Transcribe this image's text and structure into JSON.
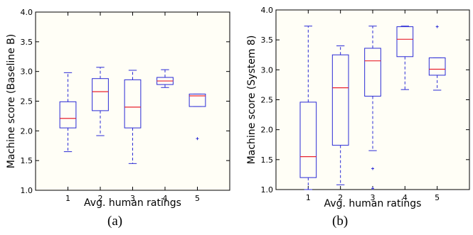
{
  "figure": {
    "captions": [
      "(a)",
      "(b)"
    ]
  },
  "colors": {
    "box": "#2a2ad6",
    "median": "#e8222f",
    "axis": "#000000",
    "background": "#fffef6"
  },
  "chart_data": [
    {
      "type": "box",
      "xlabel": "Avg. human ratings",
      "ylabel": "Machine score (Baseline B)",
      "xtick_labels": [
        "1",
        "2",
        "3",
        "4",
        "5"
      ],
      "ylim": [
        1.0,
        4.0
      ],
      "yticks": [
        "1.0",
        "1.5",
        "2.0",
        "2.5",
        "3.0",
        "3.5",
        "4.0"
      ],
      "grid": false,
      "boxes": [
        {
          "x": "1",
          "whisker_low": 1.65,
          "q1": 2.05,
          "median": 2.21,
          "q3": 2.49,
          "whisker_high": 2.98,
          "outliers": []
        },
        {
          "x": "2",
          "whisker_low": 1.92,
          "q1": 2.34,
          "median": 2.66,
          "q3": 2.88,
          "whisker_high": 3.07,
          "outliers": []
        },
        {
          "x": "3",
          "whisker_low": 1.45,
          "q1": 2.05,
          "median": 2.4,
          "q3": 2.86,
          "whisker_high": 3.02,
          "outliers": []
        },
        {
          "x": "4",
          "whisker_low": 2.73,
          "q1": 2.78,
          "median": 2.84,
          "q3": 2.9,
          "whisker_high": 3.03,
          "outliers": []
        },
        {
          "x": "5",
          "whisker_low": 2.41,
          "q1": 2.41,
          "median": 2.59,
          "q3": 2.62,
          "whisker_high": 2.62,
          "outliers": [
            1.87
          ]
        }
      ]
    },
    {
      "type": "box",
      "xlabel": "Avg. human ratings",
      "ylabel": "Machine score (System 8)",
      "xtick_labels": [
        "1",
        "2",
        "3",
        "4",
        "5"
      ],
      "ylim": [
        1.0,
        4.0
      ],
      "yticks": [
        "1.0",
        "1.5",
        "2.0",
        "2.5",
        "3.0",
        "3.5",
        "4.0"
      ],
      "grid": false,
      "boxes": [
        {
          "x": "1",
          "whisker_low": 1.0,
          "q1": 1.2,
          "median": 1.55,
          "q3": 2.46,
          "whisker_high": 3.73,
          "outliers": []
        },
        {
          "x": "2",
          "whisker_low": 1.08,
          "q1": 1.74,
          "median": 2.7,
          "q3": 3.25,
          "whisker_high": 3.4,
          "outliers": []
        },
        {
          "x": "3",
          "whisker_low": 1.65,
          "q1": 2.56,
          "median": 3.15,
          "q3": 3.36,
          "whisker_high": 3.73,
          "outliers": [
            1.35,
            1.02
          ]
        },
        {
          "x": "4",
          "whisker_low": 2.67,
          "q1": 3.22,
          "median": 3.51,
          "q3": 3.72,
          "whisker_high": 3.73,
          "outliers": []
        },
        {
          "x": "5",
          "whisker_low": 2.66,
          "q1": 2.91,
          "median": 3.01,
          "q3": 3.2,
          "whisker_high": 3.2,
          "outliers": [
            3.72
          ]
        }
      ]
    }
  ]
}
